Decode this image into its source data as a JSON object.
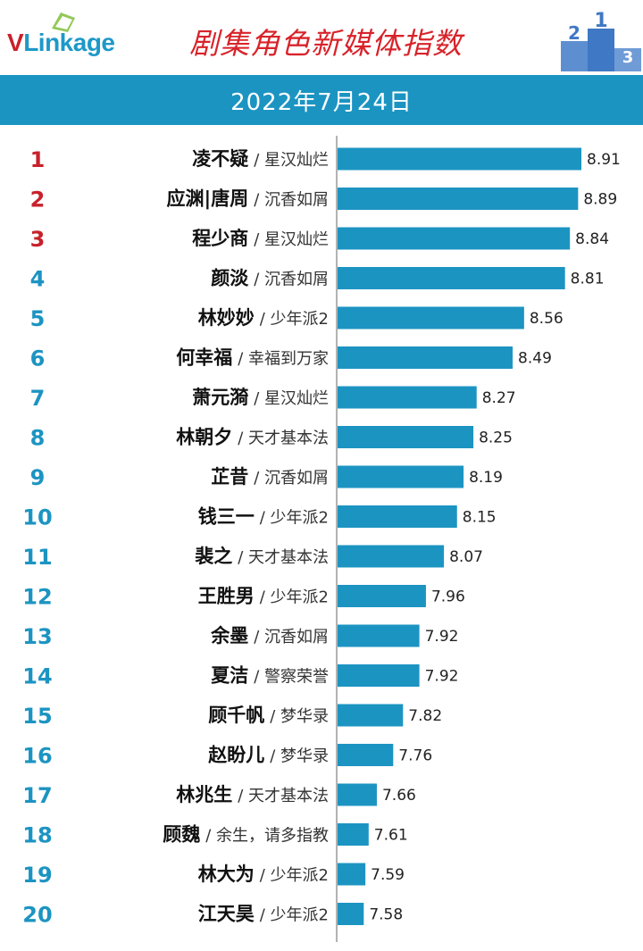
{
  "header": {
    "logo_v": "V",
    "logo_rest": "Linkage",
    "title": "剧集角色新媒体指数",
    "podium_labels": [
      "2",
      "1",
      "3"
    ]
  },
  "date": "2022年7月24日",
  "colors": {
    "bar": "#1c94c2",
    "top_rank": "#c8212b",
    "rank": "#1c94c2",
    "title": "#d8232a"
  },
  "chart_data": {
    "type": "bar",
    "orientation": "horizontal",
    "title": "剧集角色新媒体指数",
    "subtitle": "2022年7月24日",
    "categories": [
      {
        "rank": "1",
        "name": "凌不疑",
        "show": "/ 星汉灿烂"
      },
      {
        "rank": "2",
        "name": "应渊|唐周",
        "show": "/ 沉香如屑"
      },
      {
        "rank": "3",
        "name": "程少商",
        "show": "/ 星汉灿烂"
      },
      {
        "rank": "4",
        "name": "颜淡",
        "show": "/ 沉香如屑"
      },
      {
        "rank": "5",
        "name": "林妙妙",
        "show": "/ 少年派2"
      },
      {
        "rank": "6",
        "name": "何幸福",
        "show": "/ 幸福到万家"
      },
      {
        "rank": "7",
        "name": "萧元漪",
        "show": "/ 星汉灿烂"
      },
      {
        "rank": "8",
        "name": "林朝夕",
        "show": "/ 天才基本法"
      },
      {
        "rank": "9",
        "name": "芷昔",
        "show": "/ 沉香如屑"
      },
      {
        "rank": "10",
        "name": "钱三一",
        "show": "/ 少年派2"
      },
      {
        "rank": "11",
        "name": "裴之",
        "show": "/ 天才基本法"
      },
      {
        "rank": "12",
        "name": "王胜男",
        "show": "/ 少年派2"
      },
      {
        "rank": "13",
        "name": "余墨",
        "show": "/ 沉香如屑"
      },
      {
        "rank": "14",
        "name": "夏洁",
        "show": "/ 警察荣誉"
      },
      {
        "rank": "15",
        "name": "顾千帆",
        "show": "/ 梦华录"
      },
      {
        "rank": "16",
        "name": "赵盼儿",
        "show": "/ 梦华录"
      },
      {
        "rank": "17",
        "name": "林兆生",
        "show": "/ 天才基本法"
      },
      {
        "rank": "18",
        "name": "顾魏",
        "show": "/ 余生，请多指教"
      },
      {
        "rank": "19",
        "name": "林大为",
        "show": "/ 少年派2"
      },
      {
        "rank": "20",
        "name": "江天昊",
        "show": "/ 少年派2"
      }
    ],
    "values": [
      8.91,
      8.89,
      8.84,
      8.81,
      8.56,
      8.49,
      8.27,
      8.25,
      8.19,
      8.15,
      8.07,
      7.96,
      7.92,
      7.92,
      7.82,
      7.76,
      7.66,
      7.61,
      7.59,
      7.58
    ],
    "value_labels": [
      "8.91",
      "8.89",
      "8.84",
      "8.81",
      "8.56",
      "8.49",
      "8.27",
      "8.25",
      "8.19",
      "8.15",
      "8.07",
      "7.96",
      "7.92",
      "7.92",
      "7.82",
      "7.76",
      "7.66",
      "7.61",
      "7.59",
      "7.58"
    ],
    "xlim": [
      7.42,
      8.91
    ],
    "xlabel": "",
    "ylabel": "",
    "grid": false,
    "legend": "none"
  }
}
